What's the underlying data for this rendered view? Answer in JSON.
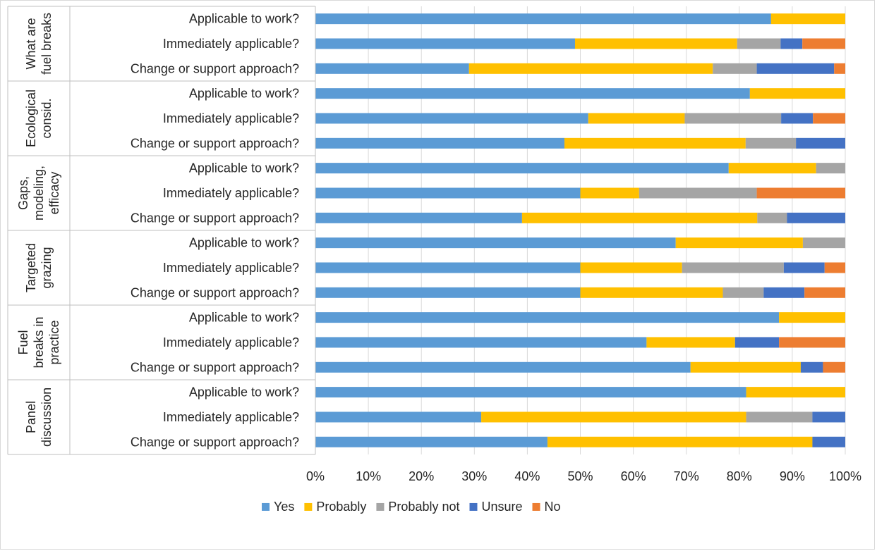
{
  "chart_data": {
    "type": "bar",
    "orientation": "horizontal",
    "stacked": "100%",
    "grid": "vertical",
    "legend_position": "bottom",
    "xlim": [
      0,
      100
    ],
    "x_tick_labels": [
      "0%",
      "10%",
      "20%",
      "30%",
      "40%",
      "50%",
      "60%",
      "70%",
      "80%",
      "90%",
      "100%"
    ],
    "groups": [
      {
        "label": "What are fuel breaks",
        "lines": [
          "What are",
          "fuel breaks"
        ],
        "questions": [
          "Applicable to work?",
          "Immediately applicable?",
          "Change or support approach?"
        ]
      },
      {
        "label": "Ecological consid.",
        "lines": [
          "Ecological",
          "consid."
        ],
        "questions": [
          "Applicable to work?",
          "Immediately applicable?",
          "Change or support approach?"
        ]
      },
      {
        "label": "Gaps, modeling, efficacy",
        "lines": [
          "Gaps,",
          "modeling,",
          "efficacy"
        ],
        "questions": [
          "Applicable to work?",
          "Immediately applicable?",
          "Change or support approach?"
        ]
      },
      {
        "label": "Targeted grazing",
        "lines": [
          "Targeted",
          "grazing"
        ],
        "questions": [
          "Applicable to work?",
          "Immediately applicable?",
          "Change or support approach?"
        ]
      },
      {
        "label": "Fuel breaks in practice",
        "lines": [
          "Fuel",
          "breaks in",
          "practice"
        ],
        "questions": [
          "Applicable to work?",
          "Immediately applicable?",
          "Change or support approach?"
        ]
      },
      {
        "label": "Panel discussion",
        "lines": [
          "Panel",
          "discussion"
        ],
        "questions": [
          "Applicable to work?",
          "Immediately applicable?",
          "Change or support approach?"
        ]
      }
    ],
    "series": [
      {
        "name": "Yes",
        "color": "#5B9BD5",
        "values": [
          86,
          49,
          29,
          82,
          51.5,
          47,
          78,
          50,
          39,
          68,
          50,
          50,
          87.5,
          62.5,
          70.8,
          81.3,
          31.3,
          43.8
        ]
      },
      {
        "name": "Probably",
        "color": "#FFC000",
        "values": [
          14,
          30.6,
          46,
          18,
          18.2,
          34.2,
          16.5,
          11.1,
          44.4,
          24,
          19.2,
          26.9,
          12.5,
          16.7,
          20.8,
          18.7,
          50,
          50
        ]
      },
      {
        "name": "Probably not",
        "color": "#A5A5A5",
        "values": [
          0,
          8.2,
          8.3,
          0,
          18.2,
          9.5,
          5.5,
          22.2,
          5.6,
          8,
          19.2,
          7.7,
          0,
          0,
          0,
          0,
          12.5,
          0
        ]
      },
      {
        "name": "Unsure",
        "color": "#4472C4",
        "values": [
          0,
          4.1,
          14.6,
          0,
          6,
          9.3,
          0,
          0,
          11,
          0,
          7.7,
          7.7,
          0,
          8.3,
          4.2,
          0,
          6.2,
          6.2
        ]
      },
      {
        "name": "No",
        "color": "#ED7D31",
        "values": [
          0,
          8.1,
          2.1,
          0,
          6.1,
          0,
          0,
          16.7,
          0,
          0,
          3.9,
          7.7,
          0,
          12.5,
          4.2,
          0,
          0,
          0
        ]
      }
    ]
  }
}
